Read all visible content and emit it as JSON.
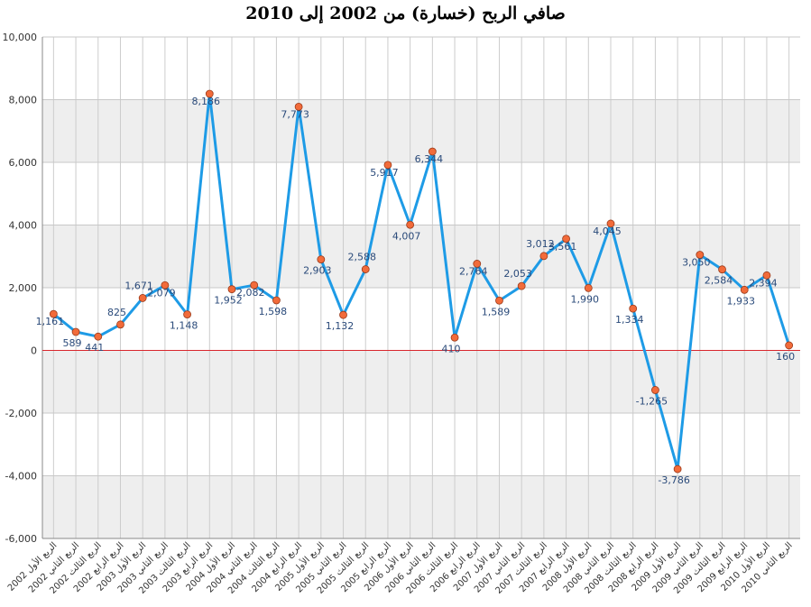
{
  "chart_data": {
    "type": "line",
    "title": "صافي الربح (خسارة) من 2002 إلى 2010",
    "xlabel": "",
    "ylabel": "",
    "ylim": [
      -6000,
      10000
    ],
    "yticks": [
      -6000,
      -4000,
      -2000,
      0,
      2000,
      4000,
      6000,
      8000,
      10000
    ],
    "grid": true,
    "legend": "none",
    "line_color": "#1e9be6",
    "marker_color": "#f26b3a",
    "zero_line_color": "#d9262c",
    "band_color": "#eeeeee",
    "categories": [
      "الربع الأول 2002",
      "الربع الثاني 2002",
      "الربع الثالث 2002",
      "الربع الرابع 2002",
      "الربع الأول 2003",
      "الربع الثاني 2003",
      "الربع الثالث 2003",
      "الربع الرابع 2003",
      "الربع الأول 2004",
      "الربع الثاني 2004",
      "الربع الثالث 2004",
      "الربع الرابع 2004",
      "الربع الأول 2005",
      "الربع الثاني 2005",
      "الربع الثالث 2005",
      "الربع الرابع 2005",
      "الربع الأول 2006",
      "الربع الثاني 2006",
      "الربع الثالث 2006",
      "الربع الرابع 2006",
      "الربع الأول 2007",
      "الربع الثاني 2007",
      "الربع الثالث 2007",
      "الربع الرابع 2007",
      "الربع الأول 2008",
      "الربع الثاني 2008",
      "الربع الثالث 2008",
      "الربع الرابع 2008",
      "الربع الأول 2009",
      "الربع الثاني 2009",
      "الربع الثالث 2009",
      "الربع الرابع 2009",
      "الربع الأول 2010",
      "الربع الثاني 2010"
    ],
    "values": [
      1161,
      589,
      441,
      825,
      1671,
      2079,
      1148,
      8186,
      1952,
      2082,
      1598,
      7773,
      2903,
      1132,
      2588,
      5917,
      4007,
      6344,
      410,
      2764,
      1589,
      2053,
      3012,
      3561,
      1990,
      4045,
      1334,
      -1265,
      -3786,
      3050,
      2584,
      1933,
      2394,
      160
    ],
    "value_labels": [
      "1,161",
      "589",
      "441",
      "825",
      "1,671",
      "2,079",
      "1,148",
      "8,186",
      "1,952",
      "2,082",
      "1,598",
      "7,773",
      "2,903",
      "1,132",
      "2,588",
      "5,917",
      "4,007",
      "6,344",
      "410",
      "2,764",
      "1,589",
      "2,053",
      "3,012",
      "3,561",
      "1,990",
      "4,045",
      "1,334",
      "-1,265",
      "-3,786",
      "3,050",
      "2,584",
      "1,933",
      "2,394",
      "160"
    ],
    "ytick_labels": [
      "-6,000",
      "-4,000",
      "-2,000",
      "0",
      "2,000",
      "4,000",
      "6,000",
      "8,000",
      "10,000"
    ]
  }
}
